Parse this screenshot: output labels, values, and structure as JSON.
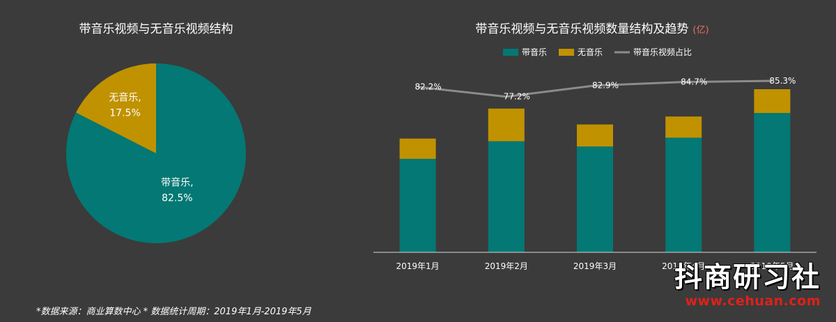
{
  "chart_data": [
    {
      "type": "pie",
      "title": "带音乐视频与无音乐视频结构",
      "slices": [
        {
          "label": "带音乐,",
          "value": 82.5,
          "value_label": "82.5%",
          "color": "#047874"
        },
        {
          "label": "无音乐,",
          "value": 17.5,
          "value_label": "17.5%",
          "color": "#c09200"
        }
      ]
    },
    {
      "type": "bar",
      "stacked": true,
      "title": "带音乐视频与无音乐视频数量结构及趋势",
      "title_unit": "(亿)",
      "categories": [
        "2019年1月",
        "2019年2月",
        "2019年3月",
        "2019年4月",
        "2019年5月"
      ],
      "series": [
        {
          "name": "带音乐",
          "color": "#047874",
          "values": [
            5.3,
            6.3,
            6.0,
            6.5,
            7.9
          ]
        },
        {
          "name": "无音乐",
          "color": "#c09200",
          "values": [
            1.15,
            1.85,
            1.25,
            1.2,
            1.35
          ]
        }
      ],
      "line_series": {
        "name": "带音乐视频占比",
        "color": "#8c8c8c",
        "values": [
          82.2,
          77.2,
          82.9,
          84.7,
          85.3
        ],
        "labels": [
          "82.2%",
          "77.2%",
          "82.9%",
          "84.7%",
          "85.3%"
        ]
      },
      "ylim": [
        0,
        10
      ],
      "legend_position": "top"
    }
  ],
  "footnote": "*数据来源：商业算数中心 * 数据统计周期：2019年1月-2019年5月",
  "watermark": {
    "cn": "抖商研习社",
    "url": "www.cehuan.com"
  }
}
